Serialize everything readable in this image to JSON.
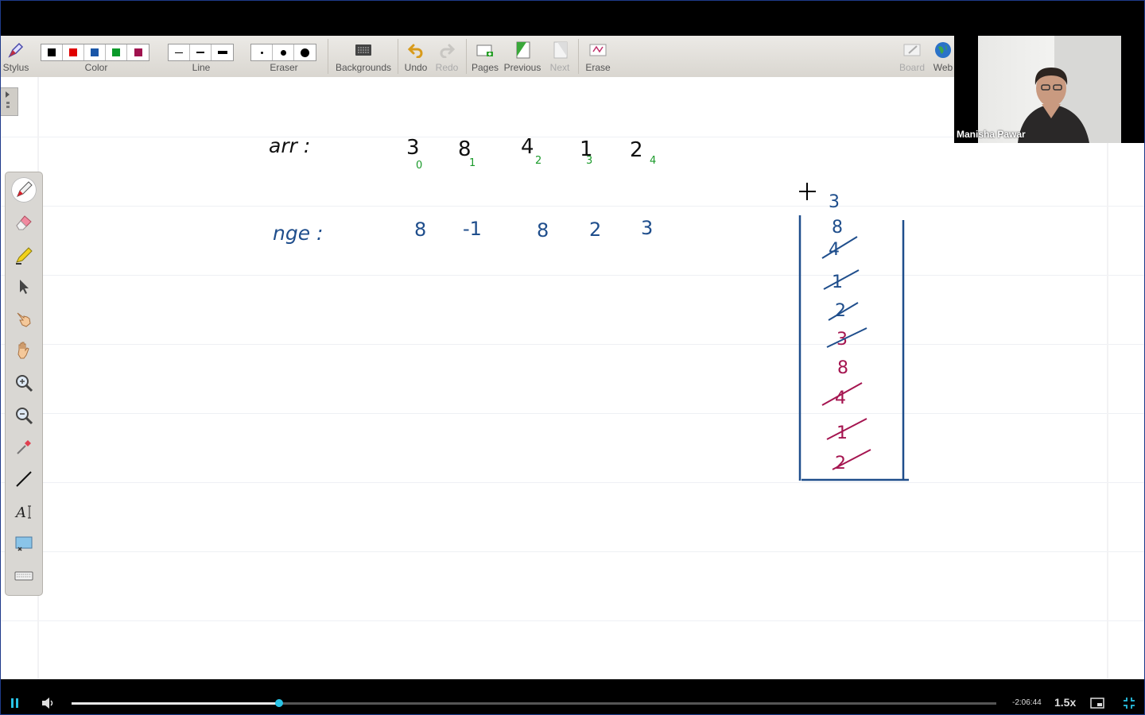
{
  "toolbar": {
    "stylus_label": "Stylus",
    "color_label": "Color",
    "line_label": "Line",
    "eraser_label": "Eraser",
    "backgrounds_label": "Backgrounds",
    "undo_label": "Undo",
    "redo_label": "Redo",
    "pages_label": "Pages",
    "previous_label": "Previous",
    "next_label": "Next",
    "erase_label": "Erase",
    "board_label": "Board",
    "web_label": "Web",
    "colors": [
      "#000000",
      "#e00000",
      "#1a56a8",
      "#0a9a2a",
      "#a0124e"
    ]
  },
  "webcam": {
    "name": "Manisha Pawar"
  },
  "whiteboard": {
    "arr_label": "arr :",
    "arr_values": [
      "3",
      "8",
      "4",
      "1",
      "2"
    ],
    "arr_indices": [
      "0",
      "1",
      "2",
      "3",
      "4"
    ],
    "nge_label": "nge :",
    "nge_values": [
      "8",
      "-1",
      "8",
      "2",
      "3"
    ],
    "stack_top_outside": "3",
    "stack_items_blue": [
      "8",
      "4",
      "1",
      "2",
      "3"
    ],
    "stack_items_red": [
      "8",
      "4",
      "1",
      "2"
    ],
    "ink_colors": {
      "black": "#111111",
      "blue": "#1f4e8c",
      "green": "#1a9a2a",
      "red": "#a51550"
    }
  },
  "player": {
    "time_remaining": "-2:06:44",
    "speed": "1.5x",
    "progress_fraction": 0.224
  }
}
